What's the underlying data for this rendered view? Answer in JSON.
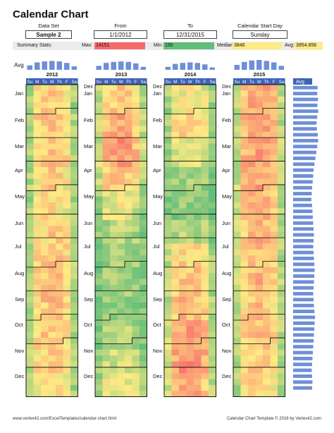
{
  "title": "Calendar Chart",
  "controls": {
    "dataset_label": "Data Set",
    "dataset_value": "Sample 2",
    "from_label": "From",
    "from_value": "1/1/2012",
    "to_label": "To",
    "to_value": "12/31/2015",
    "startday_label": "Calendar Start Day",
    "startday_value": "Sunday"
  },
  "stats": {
    "label": "Summary Stats:",
    "max_label": "Max:",
    "max_value": "14151",
    "min_label": "Min:",
    "min_value": "190",
    "median_label": "Median:",
    "median_value": "3846",
    "avg_label": "Avg:",
    "avg_value": "3954.856",
    "max_color": "#f8696b",
    "min_color": "#63be7b",
    "median_color": "#ffeb84",
    "avg_color": "#ffeb84"
  },
  "avg_row_label": "Avg",
  "side_avg_label": "Avg",
  "footer": {
    "left": "www.vertex42.com/ExcelTemplates/calendar-chart.html",
    "right": "Calendar Chart Template © 2016 by Vertex42.com"
  },
  "chart_data": {
    "type": "heatmap",
    "title": "Calendar Chart",
    "weekday_labels": [
      "Su",
      "M",
      "Tu",
      "W",
      "Th",
      "F",
      "Sa"
    ],
    "years": [
      "2012",
      "2013",
      "2014",
      "2015"
    ],
    "month_labels": [
      "Jan",
      "Feb",
      "Mar",
      "Apr",
      "May",
      "Jun",
      "Jul",
      "Aug",
      "Sep",
      "Oct",
      "Nov",
      "Dec"
    ],
    "color_scale": {
      "min": 190,
      "mid": 3846,
      "max": 14151,
      "low_color": "#63be7b",
      "mid_color": "#ffeb84",
      "high_color": "#f8696b"
    },
    "weekday_avg_by_year": [
      [
        0.45,
        0.75,
        0.85,
        0.9,
        0.85,
        0.7,
        0.35
      ],
      [
        0.4,
        0.7,
        0.8,
        0.85,
        0.8,
        0.65,
        0.3
      ],
      [
        0.3,
        0.6,
        0.7,
        0.75,
        0.7,
        0.55,
        0.25
      ],
      [
        0.5,
        0.8,
        0.95,
        1.0,
        0.9,
        0.75,
        0.4
      ]
    ],
    "year_level_by_month": [
      [
        0.55,
        0.6,
        0.62,
        0.55,
        0.5,
        0.55,
        0.6,
        0.62,
        0.6,
        0.58,
        0.55,
        0.5
      ],
      [
        0.6,
        0.7,
        0.75,
        0.6,
        0.4,
        0.25,
        0.2,
        0.2,
        0.15,
        0.25,
        0.35,
        0.45
      ],
      [
        0.45,
        0.55,
        0.4,
        0.2,
        0.15,
        0.25,
        0.55,
        0.6,
        0.65,
        0.75,
        0.8,
        0.7
      ],
      [
        0.7,
        0.7,
        0.72,
        0.7,
        0.68,
        0.66,
        0.62,
        0.65,
        0.6,
        0.62,
        0.58,
        0.55
      ]
    ],
    "weekly_avg_level": [
      0.72,
      0.7,
      0.74,
      0.71,
      0.76,
      0.7,
      0.66,
      0.68,
      0.73,
      0.75,
      0.7,
      0.65,
      0.6,
      0.55,
      0.5,
      0.48,
      0.45,
      0.42,
      0.4,
      0.38,
      0.42,
      0.44,
      0.46,
      0.48,
      0.5,
      0.52,
      0.5,
      0.48,
      0.5,
      0.52,
      0.55,
      0.56,
      0.54,
      0.52,
      0.5,
      0.48,
      0.5,
      0.52,
      0.55,
      0.58,
      0.56,
      0.54,
      0.52,
      0.5,
      0.48,
      0.46,
      0.44,
      0.42,
      0.4,
      0.42,
      0.44,
      0.42
    ]
  }
}
